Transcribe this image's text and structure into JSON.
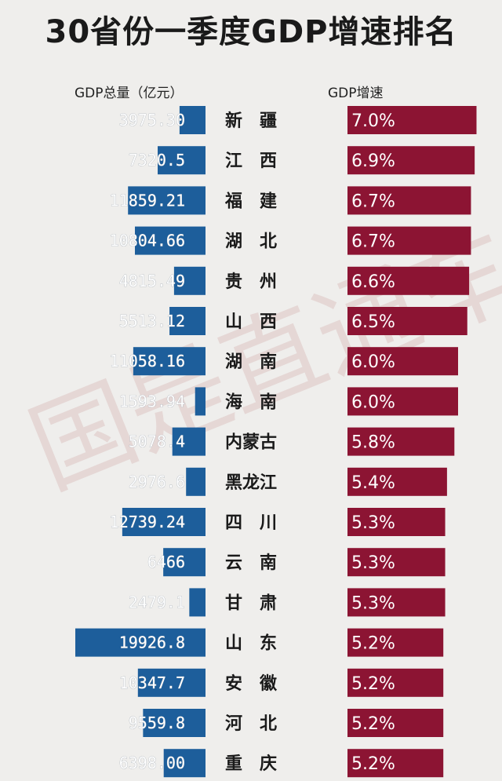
{
  "header": {
    "title": "30省份一季度GDP增速排名",
    "gdp_col_label": "GDP总量（亿元）",
    "growth_col_label": "GDP增速"
  },
  "watermark": "国是直通车",
  "colors": {
    "gdp_bar": "#1d5e9b",
    "growth_bar": "#8c1433",
    "background": "#efeeec"
  },
  "chart_data": {
    "type": "bar",
    "title": "30省份一季度GDP增速排名",
    "categories": [
      "新疆",
      "江西",
      "福建",
      "湖北",
      "贵州",
      "山西",
      "湖南",
      "海南",
      "内蒙古",
      "黑龙江",
      "四川",
      "云南",
      "甘肃",
      "山东",
      "安徽",
      "河北",
      "重庆"
    ],
    "category_labels": [
      "新　疆",
      "江　西",
      "福　建",
      "湖　北",
      "贵　州",
      "山　西",
      "湖　南",
      "海　南",
      "内蒙古",
      "黑龙江",
      "四　川",
      "云　南",
      "甘　肃",
      "山　东",
      "安　徽",
      "河　北",
      "重　庆"
    ],
    "series": [
      {
        "name": "GDP总量（亿元）",
        "values": [
          3975.3,
          7320.5,
          11859.21,
          10804.66,
          4815.49,
          5513.12,
          11058.16,
          1593.94,
          5078.4,
          2976.6,
          12739.24,
          6466,
          2479.1,
          19926.8,
          10347.7,
          9559.8,
          6398.0
        ],
        "labels": [
          "3975.30",
          "7320.5",
          "11859.21",
          "10804.66",
          "4815.49",
          "5513.12",
          "11058.16",
          "1593.94",
          "5078.4",
          "2976.6",
          "12739.24",
          "6466",
          "2479.1",
          "19926.8",
          "10347.7",
          "9559.8",
          "6398.00"
        ]
      },
      {
        "name": "GDP增速",
        "values": [
          7.0,
          6.9,
          6.7,
          6.7,
          6.6,
          6.5,
          6.0,
          6.0,
          5.8,
          5.4,
          5.3,
          5.3,
          5.3,
          5.2,
          5.2,
          5.2,
          5.2
        ],
        "labels": [
          "7.0%",
          "6.9%",
          "6.7%",
          "6.7%",
          "6.6%",
          "6.5%",
          "6.0%",
          "6.0%",
          "5.8%",
          "5.4%",
          "5.3%",
          "5.3%",
          "5.3%",
          "5.2%",
          "5.2%",
          "5.2%",
          "5.2%"
        ]
      }
    ]
  }
}
